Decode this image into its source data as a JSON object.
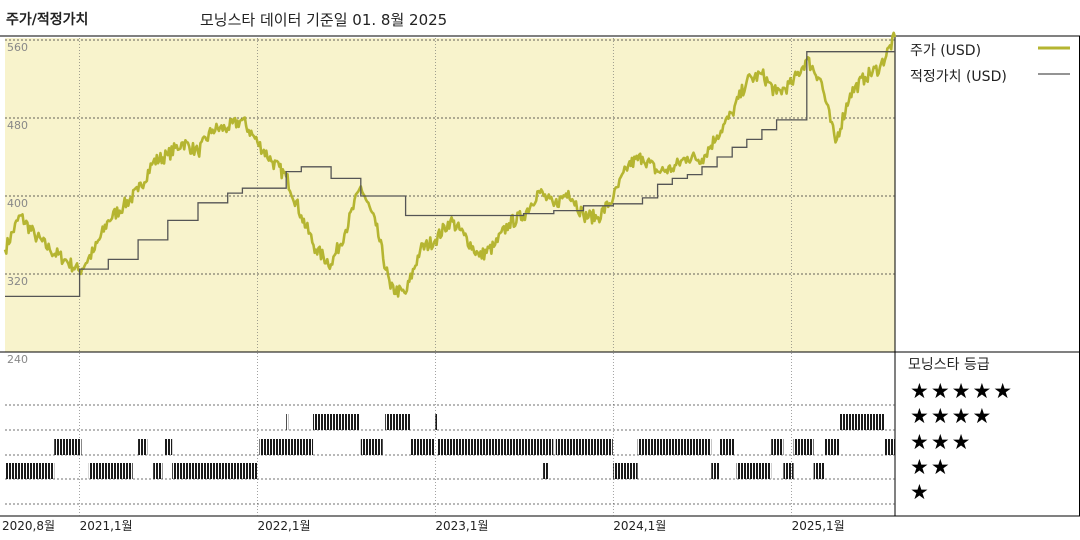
{
  "header": {
    "left_title": "주가/적정가치",
    "subtitle": "모닝스타 데이터 기준일 01. 8월 2025"
  },
  "legend": {
    "price_label": "주가 (USD)",
    "fair_label": "적정가치 (USD)",
    "price_color": "#b5b531",
    "fair_color": "#555555"
  },
  "rating": {
    "title": "모닝스타 등급",
    "levels": [
      "★★★★★",
      "★★★★",
      "★★★",
      "★★",
      "★"
    ]
  },
  "colors": {
    "plot_background": "#f8f3cc",
    "gridline": "#333333",
    "rating_bar": "#1a1a1a"
  },
  "chart_data": [
    {
      "type": "line",
      "title": "",
      "xlabel": "",
      "ylabel": "",
      "ylim": [
        240,
        560
      ],
      "yticks": [
        560,
        480,
        400,
        320,
        240
      ],
      "x_range": [
        "2020-08-01",
        "2025-08-01"
      ],
      "xticks": [
        {
          "date": "2020-08-01",
          "label": "2020,8월"
        },
        {
          "date": "2021-01-01",
          "label": "2021,1월"
        },
        {
          "date": "2022-01-01",
          "label": "2022,1월"
        },
        {
          "date": "2023-01-01",
          "label": "2023,1월"
        },
        {
          "date": "2024-01-01",
          "label": "2024,1월"
        },
        {
          "date": "2025-01-01",
          "label": "2025,1월"
        }
      ],
      "grid": true,
      "legend_position": "right",
      "series": [
        {
          "name": "주가 (USD)",
          "points": [
            [
              "2020-08-01",
              345
            ],
            [
              "2020-09-01",
              380
            ],
            [
              "2020-10-01",
              360
            ],
            [
              "2020-11-01",
              345
            ],
            [
              "2020-12-01",
              335
            ],
            [
              "2021-01-01",
              323
            ],
            [
              "2021-02-01",
              345
            ],
            [
              "2021-03-01",
              375
            ],
            [
              "2021-04-01",
              390
            ],
            [
              "2021-05-01",
              405
            ],
            [
              "2021-06-01",
              435
            ],
            [
              "2021-07-01",
              442
            ],
            [
              "2021-08-01",
              455
            ],
            [
              "2021-09-01",
              445
            ],
            [
              "2021-10-01",
              468
            ],
            [
              "2021-11-01",
              470
            ],
            [
              "2021-12-01",
              478
            ],
            [
              "2022-01-01",
              455
            ],
            [
              "2022-02-01",
              435
            ],
            [
              "2022-03-01",
              420
            ],
            [
              "2022-04-01",
              380
            ],
            [
              "2022-05-01",
              345
            ],
            [
              "2022-06-01",
              330
            ],
            [
              "2022-07-01",
              365
            ],
            [
              "2022-08-01",
              410
            ],
            [
              "2022-09-01",
              370
            ],
            [
              "2022-10-01",
              305
            ],
            [
              "2022-11-01",
              300
            ],
            [
              "2022-12-01",
              345
            ],
            [
              "2023-01-01",
              355
            ],
            [
              "2023-02-01",
              375
            ],
            [
              "2023-03-01",
              360
            ],
            [
              "2023-04-01",
              338
            ],
            [
              "2023-05-01",
              348
            ],
            [
              "2023-06-01",
              372
            ],
            [
              "2023-07-01",
              380
            ],
            [
              "2023-08-01",
              405
            ],
            [
              "2023-09-01",
              390
            ],
            [
              "2023-10-01",
              405
            ],
            [
              "2023-11-01",
              380
            ],
            [
              "2023-12-01",
              378
            ],
            [
              "2024-01-01",
              398
            ],
            [
              "2024-02-01",
              432
            ],
            [
              "2024-03-01",
              440
            ],
            [
              "2024-04-01",
              425
            ],
            [
              "2024-05-01",
              428
            ],
            [
              "2024-06-01",
              440
            ],
            [
              "2024-07-01",
              438
            ],
            [
              "2024-08-01",
              462
            ],
            [
              "2024-09-01",
              485
            ],
            [
              "2024-10-01",
              518
            ],
            [
              "2024-11-01",
              525
            ],
            [
              "2024-12-01",
              505
            ],
            [
              "2025-01-01",
              515
            ],
            [
              "2025-02-01",
              540
            ],
            [
              "2025-03-01",
              520
            ],
            [
              "2025-04-01",
              455
            ],
            [
              "2025-05-01",
              505
            ],
            [
              "2025-06-01",
              522
            ],
            [
              "2025-07-01",
              532
            ],
            [
              "2025-08-01",
              563
            ]
          ]
        },
        {
          "name": "적정가치 (USD)",
          "step": true,
          "points": [
            [
              "2020-08-01",
              297
            ],
            [
              "2021-01-01",
              325
            ],
            [
              "2021-03-01",
              335
            ],
            [
              "2021-05-01",
              355
            ],
            [
              "2021-07-01",
              375
            ],
            [
              "2021-09-01",
              393
            ],
            [
              "2021-11-01",
              403
            ],
            [
              "2021-12-01",
              408
            ],
            [
              "2022-03-01",
              425
            ],
            [
              "2022-04-01",
              430
            ],
            [
              "2022-06-01",
              418
            ],
            [
              "2022-08-01",
              400
            ],
            [
              "2022-11-01",
              380
            ],
            [
              "2023-05-01",
              380
            ],
            [
              "2023-07-01",
              382
            ],
            [
              "2023-09-01",
              385
            ],
            [
              "2023-11-01",
              390
            ],
            [
              "2024-01-01",
              392
            ],
            [
              "2024-03-01",
              398
            ],
            [
              "2024-04-01",
              412
            ],
            [
              "2024-05-01",
              418
            ],
            [
              "2024-06-01",
              422
            ],
            [
              "2024-07-01",
              430
            ],
            [
              "2024-08-01",
              440
            ],
            [
              "2024-09-01",
              450
            ],
            [
              "2024-10-01",
              458
            ],
            [
              "2024-11-01",
              468
            ],
            [
              "2024-12-01",
              478
            ],
            [
              "2025-02-01",
              548
            ],
            [
              "2025-08-01",
              548
            ]
          ]
        }
      ]
    },
    {
      "type": "rating-timeline",
      "levels": [
        5,
        4,
        3,
        2,
        1
      ],
      "periods": [
        {
          "start": "2020-08-01",
          "end": "2020-11-10",
          "stars": 2
        },
        {
          "start": "2020-11-10",
          "end": "2021-01-05",
          "stars": 3
        },
        {
          "start": "2021-01-20",
          "end": "2021-04-20",
          "stars": 2
        },
        {
          "start": "2021-05-01",
          "end": "2021-05-20",
          "stars": 3
        },
        {
          "start": "2021-06-01",
          "end": "2021-06-20",
          "stars": 2
        },
        {
          "start": "2021-06-25",
          "end": "2021-07-10",
          "stars": 3
        },
        {
          "start": "2021-07-10",
          "end": "2021-12-31",
          "stars": 2
        },
        {
          "start": "2022-01-05",
          "end": "2022-04-25",
          "stars": 3
        },
        {
          "start": "2022-03-01",
          "end": "2022-03-05",
          "stars": 4
        },
        {
          "start": "2022-04-25",
          "end": "2022-07-30",
          "stars": 4
        },
        {
          "start": "2022-08-01",
          "end": "2022-09-15",
          "stars": 3
        },
        {
          "start": "2022-09-20",
          "end": "2022-11-10",
          "stars": 4
        },
        {
          "start": "2022-11-10",
          "end": "2022-12-31",
          "stars": 3
        },
        {
          "start": "2023-01-01",
          "end": "2023-01-05",
          "stars": 4
        },
        {
          "start": "2023-01-05",
          "end": "2023-08-31",
          "stars": 3
        },
        {
          "start": "2023-08-10",
          "end": "2023-08-20",
          "stars": 2
        },
        {
          "start": "2023-09-05",
          "end": "2023-12-31",
          "stars": 3
        },
        {
          "start": "2024-01-01",
          "end": "2024-02-20",
          "stars": 2
        },
        {
          "start": "2024-02-20",
          "end": "2024-07-20",
          "stars": 3
        },
        {
          "start": "2024-07-20",
          "end": "2024-08-05",
          "stars": 2
        },
        {
          "start": "2024-08-05",
          "end": "2024-09-05",
          "stars": 3
        },
        {
          "start": "2024-09-10",
          "end": "2024-11-20",
          "stars": 2
        },
        {
          "start": "2024-11-20",
          "end": "2024-12-15",
          "stars": 3
        },
        {
          "start": "2024-12-15",
          "end": "2025-01-05",
          "stars": 2
        },
        {
          "start": "2025-01-05",
          "end": "2025-02-15",
          "stars": 3
        },
        {
          "start": "2025-02-15",
          "end": "2025-03-10",
          "stars": 2
        },
        {
          "start": "2025-03-10",
          "end": "2025-04-10",
          "stars": 3
        },
        {
          "start": "2025-04-10",
          "end": "2025-07-10",
          "stars": 4
        },
        {
          "start": "2025-07-10",
          "end": "2025-08-01",
          "stars": 3
        }
      ]
    }
  ]
}
